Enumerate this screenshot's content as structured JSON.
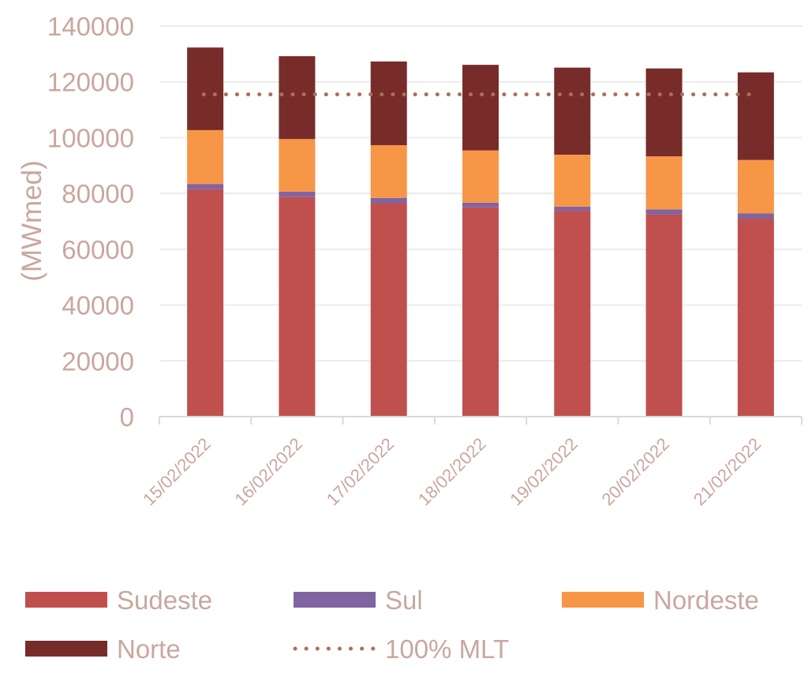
{
  "chart_data": {
    "type": "bar",
    "stacked": true,
    "ylabel": "(MWmed)",
    "xlabel": "",
    "ylim": [
      0,
      140000
    ],
    "yticks": [
      0,
      20000,
      40000,
      60000,
      80000,
      100000,
      120000,
      140000
    ],
    "grid": true,
    "legend_position": "bottom",
    "categories": [
      "15/02/2022",
      "16/02/2022",
      "17/02/2022",
      "18/02/2022",
      "19/02/2022",
      "20/02/2022",
      "21/02/2022"
    ],
    "series": [
      {
        "name": "Sudeste",
        "color": "#C0504D",
        "values": [
          81500,
          78700,
          76500,
          75000,
          73800,
          72500,
          71000
        ]
      },
      {
        "name": "Sul",
        "color": "#8064A2",
        "values": [
          1900,
          1900,
          1900,
          1700,
          1500,
          1800,
          1900
        ]
      },
      {
        "name": "Nordeste",
        "color": "#F79646",
        "values": [
          19300,
          18900,
          18900,
          18700,
          18600,
          19000,
          19100
        ]
      },
      {
        "name": "Norte",
        "color": "#772C2A",
        "values": [
          29600,
          29700,
          30000,
          30700,
          31200,
          31500,
          31400
        ]
      }
    ],
    "reference_line": {
      "name": "100% MLT",
      "value": 115500,
      "color": "#A9705A",
      "style": "dotted"
    }
  }
}
